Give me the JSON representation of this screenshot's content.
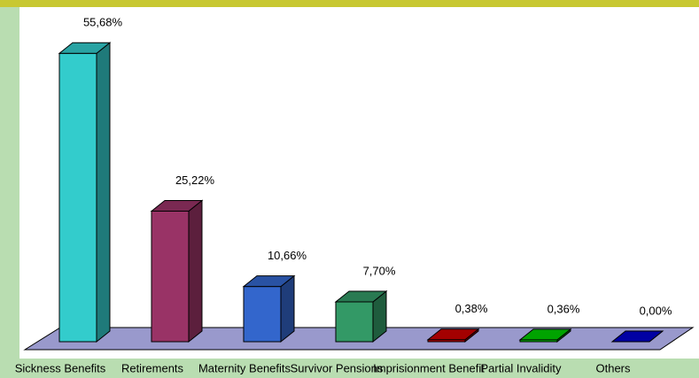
{
  "chart_data": {
    "type": "bar3d",
    "categories": [
      "Sickness Benefits",
      "Retirements",
      "Maternity Benefits",
      "Survivor Pensions",
      "Imprisionment Benefit",
      "Partial Invalidity",
      "Others"
    ],
    "values": [
      55.68,
      25.22,
      10.66,
      7.7,
      0.38,
      0.36,
      0.0
    ],
    "value_labels": [
      "55,68%",
      "25,22%",
      "10,66%",
      "7,70%",
      "0,38%",
      "0,36%",
      "0,00%"
    ],
    "colors": [
      "#33cccc",
      "#993366",
      "#3366cc",
      "#339966",
      "#cc0000",
      "#00cc00",
      "#0000cc"
    ]
  }
}
